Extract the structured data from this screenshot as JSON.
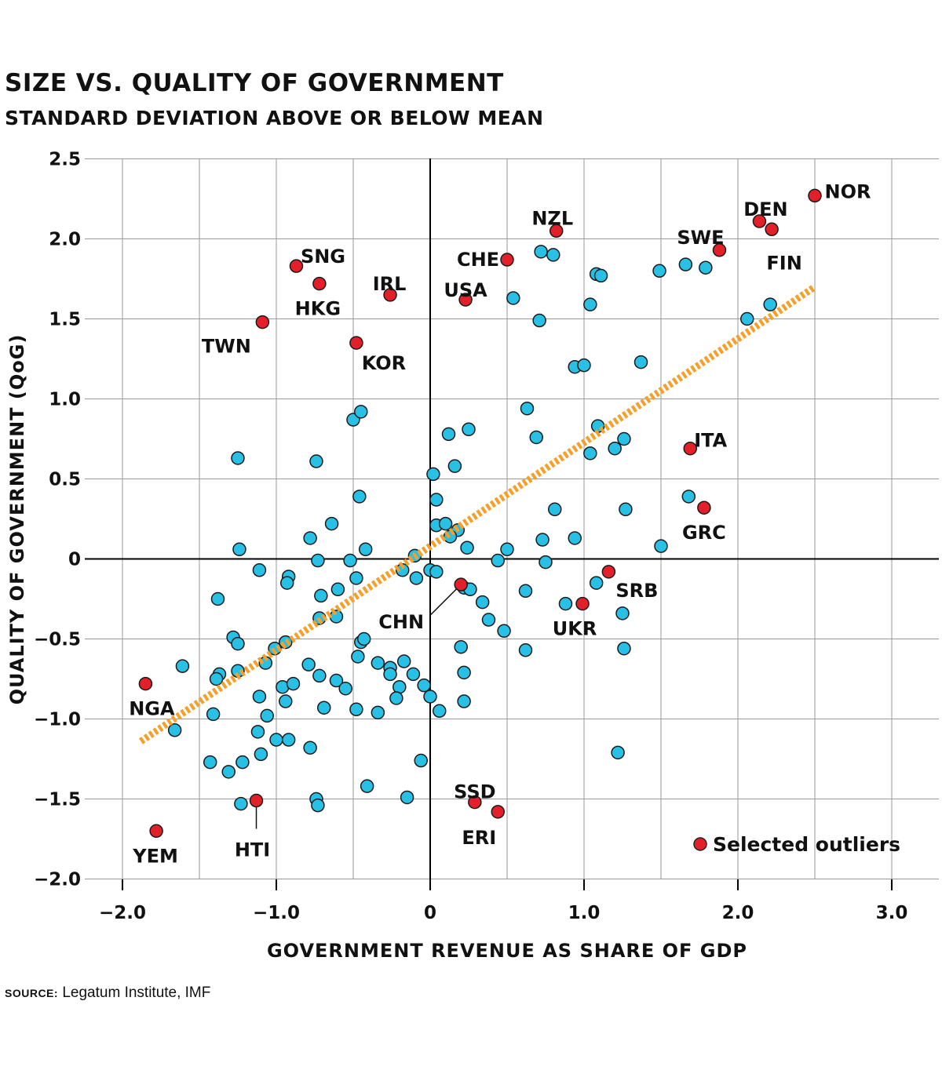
{
  "title": "SIZE VS. QUALITY OF GOVERNMENT",
  "subtitle": "STANDARD DEVIATION ABOVE OR BELOW MEAN",
  "source": {
    "label": "SOURCE:",
    "text": "Legatum Institute, IMF"
  },
  "colors": {
    "regular": "#29c0e6",
    "outlier": "#e3202a",
    "trend": "#f5a02c",
    "grid": "#9a9a9a",
    "axis": "#000000"
  },
  "chart_data": {
    "type": "scatter",
    "title": "SIZE VS. QUALITY OF GOVERNMENT",
    "subtitle": "STANDARD DEVIATION ABOVE OR BELOW MEAN",
    "xlabel": "GOVERNMENT REVENUE AS SHARE OF GDP",
    "ylabel": "QUALITY OF GOVERNMENT (QoG)",
    "xlim": [
      -2.2,
      3.3
    ],
    "ylim": [
      -2.0,
      2.5
    ],
    "x_ticks": [
      -2.0,
      -1.0,
      0,
      1.0,
      2.0,
      3.0
    ],
    "x_tick_labels": [
      "−2.0",
      "−1.0",
      "0",
      "1.0",
      "2.0",
      "3.0"
    ],
    "y_ticks": [
      2.5,
      2.0,
      1.5,
      1.0,
      0.5,
      0,
      -0.5,
      -1.0,
      -1.5,
      -2.0
    ],
    "y_tick_labels": [
      "2.5",
      "2.0",
      "1.5",
      "1.0",
      "0.5",
      "0",
      "−0.5",
      "−1.0",
      "−1.5",
      "−2.0"
    ],
    "grid": true,
    "legend": {
      "label": "Selected outliers",
      "position": "bottom-right"
    },
    "trend_line": {
      "x": [
        -1.88,
        2.5
      ],
      "y": [
        -1.14,
        1.7
      ],
      "style": "dotted"
    },
    "outliers": [
      {
        "label": "NOR",
        "x": 2.5,
        "y": 2.27
      },
      {
        "label": "DEN",
        "x": 2.14,
        "y": 2.11
      },
      {
        "label": "FIN",
        "x": 2.22,
        "y": 2.06
      },
      {
        "label": "SWE",
        "x": 1.88,
        "y": 1.93
      },
      {
        "label": "NZL",
        "x": 0.82,
        "y": 2.05
      },
      {
        "label": "CHE",
        "x": 0.5,
        "y": 1.87
      },
      {
        "label": "USA",
        "x": 0.23,
        "y": 1.62
      },
      {
        "label": "IRL",
        "x": -0.26,
        "y": 1.65
      },
      {
        "label": "SNG",
        "x": -0.87,
        "y": 1.83
      },
      {
        "label": "HKG",
        "x": -0.72,
        "y": 1.72
      },
      {
        "label": "TWN",
        "x": -1.09,
        "y": 1.48
      },
      {
        "label": "KOR",
        "x": -0.48,
        "y": 1.35
      },
      {
        "label": "ITA",
        "x": 1.69,
        "y": 0.69
      },
      {
        "label": "GRC",
        "x": 1.78,
        "y": 0.32
      },
      {
        "label": "SRB",
        "x": 1.16,
        "y": -0.08
      },
      {
        "label": "UKR",
        "x": 0.99,
        "y": -0.28
      },
      {
        "label": "CHN",
        "x": 0.2,
        "y": -0.16
      },
      {
        "label": "NGA",
        "x": -1.85,
        "y": -0.78
      },
      {
        "label": "HTI",
        "x": -1.13,
        "y": -1.51
      },
      {
        "label": "YEM",
        "x": -1.78,
        "y": -1.7
      },
      {
        "label": "SSD",
        "x": 0.29,
        "y": -1.52
      },
      {
        "label": "ERI",
        "x": 0.44,
        "y": -1.58
      }
    ],
    "points": [
      [
        0.72,
        1.92
      ],
      [
        0.8,
        1.9
      ],
      [
        1.08,
        1.78
      ],
      [
        1.11,
        1.77
      ],
      [
        1.49,
        1.8
      ],
      [
        1.66,
        1.84
      ],
      [
        1.79,
        1.82
      ],
      [
        0.54,
        1.63
      ],
      [
        1.04,
        1.59
      ],
      [
        0.71,
        1.49
      ],
      [
        2.06,
        1.5
      ],
      [
        2.21,
        1.59
      ],
      [
        0.94,
        1.2
      ],
      [
        1.0,
        1.21
      ],
      [
        1.37,
        1.23
      ],
      [
        -0.5,
        0.87
      ],
      [
        -0.45,
        0.92
      ],
      [
        0.63,
        0.94
      ],
      [
        0.12,
        0.78
      ],
      [
        0.25,
        0.81
      ],
      [
        0.69,
        0.76
      ],
      [
        1.09,
        0.83
      ],
      [
        1.26,
        0.75
      ],
      [
        1.2,
        0.69
      ],
      [
        1.04,
        0.66
      ],
      [
        -1.25,
        0.63
      ],
      [
        -0.74,
        0.61
      ],
      [
        0.16,
        0.58
      ],
      [
        0.02,
        0.53
      ],
      [
        -0.46,
        0.39
      ],
      [
        0.04,
        0.37
      ],
      [
        1.68,
        0.39
      ],
      [
        0.81,
        0.31
      ],
      [
        1.27,
        0.31
      ],
      [
        -0.64,
        0.22
      ],
      [
        0.04,
        0.21
      ],
      [
        0.1,
        0.22
      ],
      [
        0.18,
        0.18
      ],
      [
        0.13,
        0.14
      ],
      [
        -0.78,
        0.13
      ],
      [
        0.73,
        0.12
      ],
      [
        0.94,
        0.13
      ],
      [
        -1.24,
        0.06
      ],
      [
        -0.42,
        0.06
      ],
      [
        0.24,
        0.07
      ],
      [
        0.5,
        0.06
      ],
      [
        1.5,
        0.08
      ],
      [
        -0.73,
        -0.01
      ],
      [
        -0.52,
        -0.01
      ],
      [
        -0.1,
        0.02
      ],
      [
        0.44,
        -0.01
      ],
      [
        0.75,
        -0.02
      ],
      [
        -1.11,
        -0.07
      ],
      [
        -0.92,
        -0.11
      ],
      [
        -0.93,
        -0.15
      ],
      [
        -0.18,
        -0.07
      ],
      [
        -0.09,
        -0.12
      ],
      [
        0.0,
        -0.07
      ],
      [
        0.04,
        -0.08
      ],
      [
        -0.48,
        -0.12
      ],
      [
        -0.71,
        -0.23
      ],
      [
        -0.6,
        -0.19
      ],
      [
        0.22,
        -0.18
      ],
      [
        0.26,
        -0.19
      ],
      [
        0.62,
        -0.2
      ],
      [
        1.08,
        -0.15
      ],
      [
        -1.38,
        -0.25
      ],
      [
        0.34,
        -0.27
      ],
      [
        0.88,
        -0.28
      ],
      [
        1.25,
        -0.34
      ],
      [
        -0.72,
        -0.37
      ],
      [
        -0.61,
        -0.36
      ],
      [
        0.38,
        -0.38
      ],
      [
        0.48,
        -0.45
      ],
      [
        -1.28,
        -0.49
      ],
      [
        -1.25,
        -0.53
      ],
      [
        -1.01,
        -0.56
      ],
      [
        -0.94,
        -0.52
      ],
      [
        -0.45,
        -0.52
      ],
      [
        -0.43,
        -0.5
      ],
      [
        -0.47,
        -0.61
      ],
      [
        0.2,
        -0.55
      ],
      [
        0.62,
        -0.57
      ],
      [
        1.26,
        -0.56
      ],
      [
        -1.61,
        -0.67
      ],
      [
        -1.37,
        -0.72
      ],
      [
        -1.39,
        -0.75
      ],
      [
        -1.25,
        -0.7
      ],
      [
        -1.07,
        -0.65
      ],
      [
        -0.79,
        -0.66
      ],
      [
        -0.34,
        -0.65
      ],
      [
        -0.26,
        -0.68
      ],
      [
        -0.26,
        -0.72
      ],
      [
        -0.17,
        -0.64
      ],
      [
        -0.11,
        -0.72
      ],
      [
        0.22,
        -0.71
      ],
      [
        -0.72,
        -0.73
      ],
      [
        -0.61,
        -0.76
      ],
      [
        -0.55,
        -0.81
      ],
      [
        -0.96,
        -0.8
      ],
      [
        -0.89,
        -0.78
      ],
      [
        -0.94,
        -0.89
      ],
      [
        -0.2,
        -0.8
      ],
      [
        -0.04,
        -0.79
      ],
      [
        -1.11,
        -0.86
      ],
      [
        -0.22,
        -0.87
      ],
      [
        0.0,
        -0.86
      ],
      [
        0.22,
        -0.89
      ],
      [
        -0.69,
        -0.93
      ],
      [
        -0.48,
        -0.94
      ],
      [
        -0.34,
        -0.96
      ],
      [
        0.06,
        -0.95
      ],
      [
        -1.41,
        -0.97
      ],
      [
        -1.06,
        -0.98
      ],
      [
        -1.66,
        -1.07
      ],
      [
        -1.12,
        -1.08
      ],
      [
        -1.0,
        -1.13
      ],
      [
        -0.92,
        -1.13
      ],
      [
        -0.78,
        -1.18
      ],
      [
        -1.1,
        -1.22
      ],
      [
        1.22,
        -1.21
      ],
      [
        -1.43,
        -1.27
      ],
      [
        -1.22,
        -1.27
      ],
      [
        -0.06,
        -1.26
      ],
      [
        -1.31,
        -1.33
      ],
      [
        -0.41,
        -1.42
      ],
      [
        -1.23,
        -1.53
      ],
      [
        -0.74,
        -1.5
      ],
      [
        -0.73,
        -1.54
      ],
      [
        -0.15,
        -1.49
      ]
    ]
  }
}
